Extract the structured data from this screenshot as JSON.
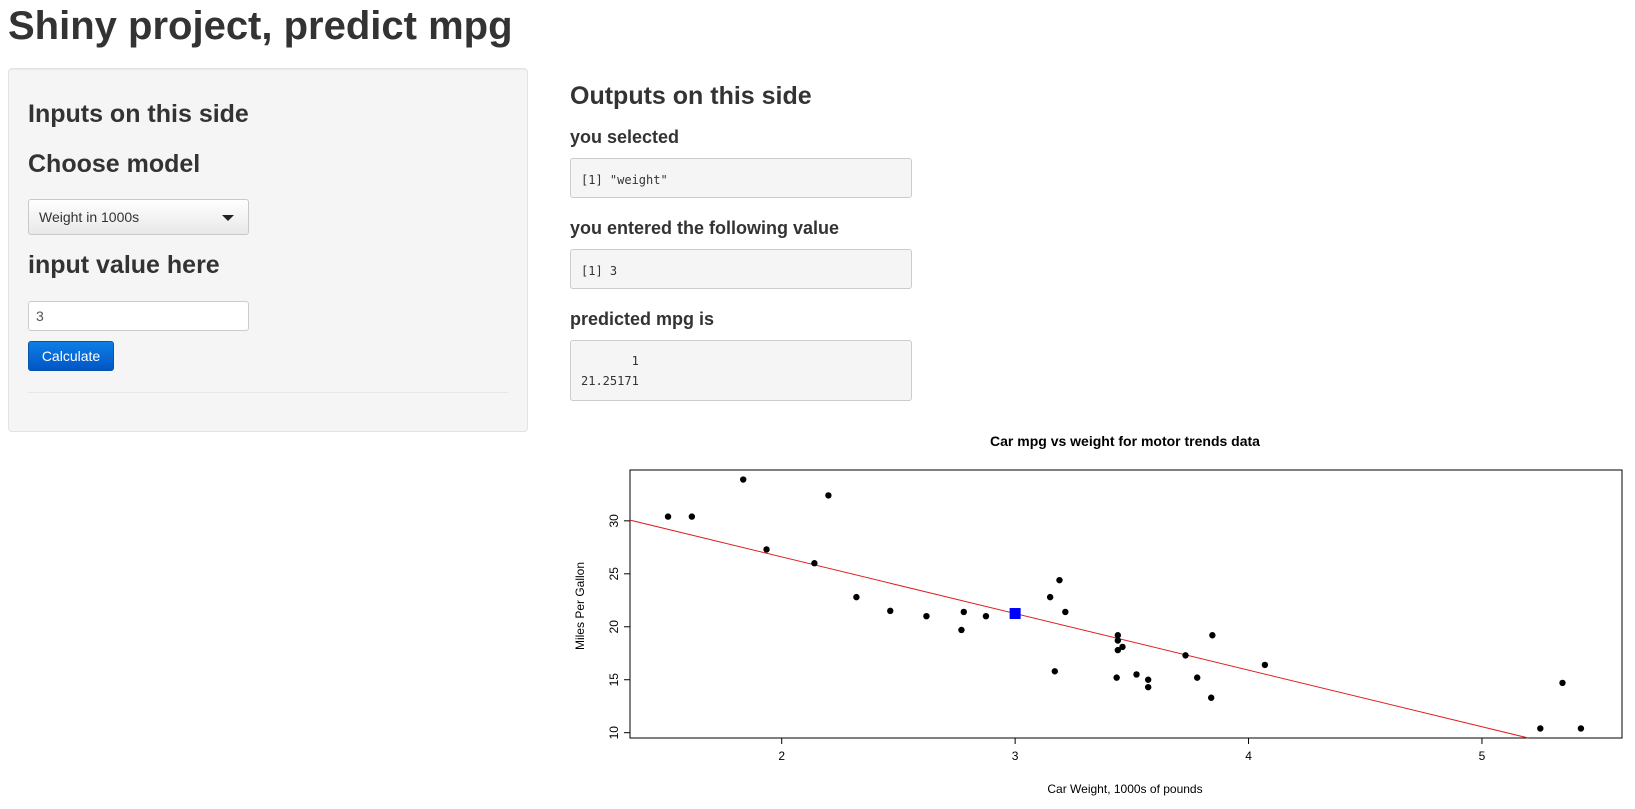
{
  "app_title": "Shiny project, predict mpg",
  "sidebar": {
    "heading": "Inputs on this side",
    "model_label": "Choose model",
    "model_selected": "Weight in 1000s",
    "value_label": "input value here",
    "value_input": "3",
    "calculate_label": "Calculate"
  },
  "outputs": {
    "heading": "Outputs on this side",
    "selected_label": "you selected",
    "selected_value": "[1] \"weight\"",
    "entered_label": "you entered the following value",
    "entered_value": "[1] 3",
    "predicted_label": "predicted mpg is",
    "predicted_value": "       1\n21.25171"
  },
  "chart_data": {
    "type": "scatter",
    "title": "Car mpg vs weight for motor trends data",
    "xlabel": "Car Weight, 1000s of pounds",
    "ylabel": "Miles Per Gallon",
    "xlim": [
      1.35,
      5.6
    ],
    "ylim": [
      9.5,
      34.8
    ],
    "xticks": [
      2,
      3,
      4,
      5
    ],
    "yticks": [
      10,
      15,
      20,
      25,
      30
    ],
    "points": [
      [
        2.62,
        21.0
      ],
      [
        2.875,
        21.0
      ],
      [
        2.32,
        22.8
      ],
      [
        3.215,
        21.4
      ],
      [
        3.44,
        18.7
      ],
      [
        3.46,
        18.1
      ],
      [
        3.57,
        14.3
      ],
      [
        3.19,
        24.4
      ],
      [
        3.15,
        22.8
      ],
      [
        3.44,
        19.2
      ],
      [
        3.44,
        17.8
      ],
      [
        4.07,
        16.4
      ],
      [
        3.73,
        17.3
      ],
      [
        3.78,
        15.2
      ],
      [
        5.25,
        10.4
      ],
      [
        5.424,
        10.4
      ],
      [
        5.345,
        14.7
      ],
      [
        2.2,
        32.4
      ],
      [
        1.615,
        30.4
      ],
      [
        1.835,
        33.9
      ],
      [
        2.465,
        21.5
      ],
      [
        3.52,
        15.5
      ],
      [
        3.435,
        15.2
      ],
      [
        3.84,
        13.3
      ],
      [
        3.845,
        19.2
      ],
      [
        1.935,
        27.3
      ],
      [
        2.14,
        26.0
      ],
      [
        1.513,
        30.4
      ],
      [
        3.17,
        15.8
      ],
      [
        2.77,
        19.7
      ],
      [
        3.57,
        15.0
      ],
      [
        2.78,
        21.4
      ]
    ],
    "regression": {
      "intercept": 37.2851,
      "slope": -5.3445
    },
    "prediction": {
      "x": 3,
      "y": 21.25171
    },
    "colors": {
      "points": "#000000",
      "line": "#e02020",
      "prediction": "#0000ff"
    }
  }
}
